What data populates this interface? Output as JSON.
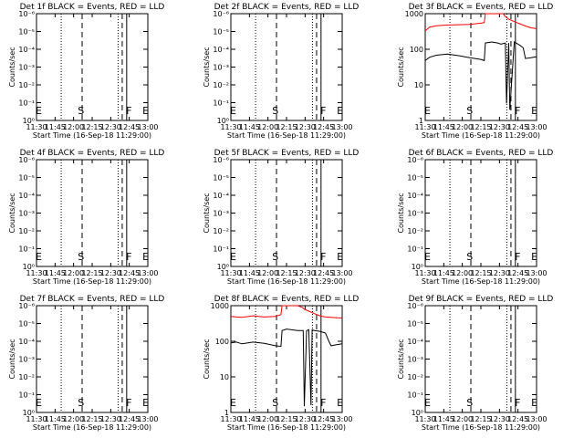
{
  "chart_data": [
    {
      "type": "line",
      "title": "Det 1f BLACK = Events, RED = LLD",
      "xlabel": "Start Time (16-Sep-18 11:29:00)",
      "ylabel": "Counts/sec",
      "x_ticks": [
        "11:30",
        "11:45",
        "12:00",
        "12:15",
        "12:30",
        "12:45",
        "13:00"
      ],
      "y_ticks": [
        "10⁰",
        "10⁻¹",
        "10⁻²",
        "10⁻³",
        "10⁻⁴",
        "10⁻⁵",
        "10⁻⁶"
      ],
      "y_scale": "log",
      "y_tick_values": [
        1,
        0.1,
        0.01,
        0.001,
        0.0001,
        1e-05,
        1e-06
      ],
      "ylim": [
        1,
        1e-06
      ],
      "markers": [
        "E",
        "S",
        "F",
        "E"
      ],
      "series": []
    },
    {
      "type": "line",
      "title": "Det 2f BLACK = Events, RED = LLD",
      "xlabel": "Start Time (16-Sep-18 11:29:00)",
      "ylabel": "Counts/sec",
      "x_ticks": [
        "11:30",
        "11:45",
        "12:00",
        "12:15",
        "12:30",
        "12:45",
        "13:00"
      ],
      "y_ticks": [
        "10⁰",
        "10⁻¹",
        "10⁻²",
        "10⁻³",
        "10⁻⁴",
        "10⁻⁵",
        "10⁻⁶"
      ],
      "y_scale": "log",
      "y_tick_values": [
        1,
        0.1,
        0.01,
        0.001,
        0.0001,
        1e-05,
        1e-06
      ],
      "ylim": [
        1,
        1e-06
      ],
      "markers": [
        "E",
        "S",
        "F",
        "E"
      ],
      "series": []
    },
    {
      "type": "line",
      "title": "Det 3f BLACK = Events, RED = LLD",
      "xlabel": "Start Time (16-Sep-18 11:29:00)",
      "ylabel": "Counts/sec",
      "x_ticks": [
        "11:30",
        "11:45",
        "12:00",
        "12:15",
        "12:30",
        "12:45",
        "13:00"
      ],
      "y_ticks": [
        "1",
        "10",
        "100",
        "1000"
      ],
      "y_scale": "log",
      "y_tick_values": [
        1,
        10,
        100,
        1000
      ],
      "ylim": [
        1,
        1000
      ],
      "markers": [
        "E",
        "S",
        "F",
        "E"
      ],
      "series": [
        {
          "color": "#ff0000",
          "x": [
            0.0,
            0.04,
            0.1,
            0.2,
            0.3,
            0.4,
            0.5,
            0.53,
            0.54,
            0.6,
            0.65,
            0.68,
            0.7,
            0.72,
            0.75,
            0.8,
            0.85,
            0.9,
            0.95,
            1.0
          ],
          "y": [
            330,
            420,
            460,
            480,
            490,
            500,
            540,
            560,
            1000,
            1000,
            1000,
            1000,
            1000,
            830,
            700,
            600,
            520,
            450,
            400,
            380
          ]
        },
        {
          "color": "#000000",
          "x": [
            0.0,
            0.04,
            0.1,
            0.2,
            0.3,
            0.4,
            0.5,
            0.53,
            0.54,
            0.6,
            0.65,
            0.68,
            0.72,
            0.73,
            0.75,
            0.76,
            0.8,
            0.85,
            0.88,
            0.9,
            0.95,
            1.0
          ],
          "y": [
            48,
            60,
            68,
            73,
            66,
            58,
            52,
            48,
            150,
            160,
            150,
            140,
            150,
            3,
            150,
            2,
            160,
            130,
            110,
            55,
            58,
            62
          ]
        }
      ]
    },
    {
      "type": "line",
      "title": "Det 4f BLACK = Events, RED = LLD",
      "xlabel": "Start Time (16-Sep-18 11:29:00)",
      "ylabel": "Counts/sec",
      "x_ticks": [
        "11:30",
        "11:45",
        "12:00",
        "12:15",
        "12:30",
        "12:45",
        "13:00"
      ],
      "y_ticks": [
        "10⁰",
        "10⁻¹",
        "10⁻²",
        "10⁻³",
        "10⁻⁴",
        "10⁻⁵",
        "10⁻⁶"
      ],
      "y_scale": "log",
      "y_tick_values": [
        1,
        0.1,
        0.01,
        0.001,
        0.0001,
        1e-05,
        1e-06
      ],
      "ylim": [
        1,
        1e-06
      ],
      "markers": [
        "E",
        "S",
        "F",
        "E"
      ],
      "series": []
    },
    {
      "type": "line",
      "title": "Det 5f BLACK = Events, RED = LLD",
      "xlabel": "Start Time (16-Sep-18 11:29:00)",
      "ylabel": "Counts/sec",
      "x_ticks": [
        "11:30",
        "11:45",
        "12:00",
        "12:15",
        "12:30",
        "12:45",
        "13:00"
      ],
      "y_ticks": [
        "10⁰",
        "10⁻¹",
        "10⁻²",
        "10⁻³",
        "10⁻⁴",
        "10⁻⁵",
        "10⁻⁶"
      ],
      "y_scale": "log",
      "y_tick_values": [
        1,
        0.1,
        0.01,
        0.001,
        0.0001,
        1e-05,
        1e-06
      ],
      "ylim": [
        1,
        1e-06
      ],
      "markers": [
        "E",
        "S",
        "F",
        "E"
      ],
      "series": []
    },
    {
      "type": "line",
      "title": "Det 6f BLACK = Events, RED = LLD",
      "xlabel": "Start Time (16-Sep-18 11:29:00)",
      "ylabel": "Counts/sec",
      "x_ticks": [
        "11:30",
        "11:45",
        "12:00",
        "12:15",
        "12:30",
        "12:45",
        "13:00"
      ],
      "y_ticks": [
        "10⁰",
        "10⁻¹",
        "10⁻²",
        "10⁻³",
        "10⁻⁴",
        "10⁻⁵",
        "10⁻⁶"
      ],
      "y_scale": "log",
      "y_tick_values": [
        1,
        0.1,
        0.01,
        0.001,
        0.0001,
        1e-05,
        1e-06
      ],
      "ylim": [
        1,
        1e-06
      ],
      "markers": [
        "E",
        "S",
        "F",
        "E"
      ],
      "series": []
    },
    {
      "type": "line",
      "title": "Det 7f BLACK = Events, RED = LLD",
      "xlabel": "Start Time (16-Sep-18 11:29:00)",
      "ylabel": "Counts/sec",
      "x_ticks": [
        "11:30",
        "11:45",
        "12:00",
        "12:15",
        "12:30",
        "12:45",
        "13:00"
      ],
      "y_ticks": [
        "10⁰",
        "10⁻¹",
        "10⁻²",
        "10⁻³",
        "10⁻⁴",
        "10⁻⁵",
        "10⁻⁶"
      ],
      "y_scale": "log",
      "y_tick_values": [
        1,
        0.1,
        0.01,
        0.001,
        0.0001,
        1e-05,
        1e-06
      ],
      "ylim": [
        1,
        1e-06
      ],
      "markers": [
        "E",
        "S",
        "F",
        "E"
      ],
      "series": []
    },
    {
      "type": "line",
      "title": "Det 8f BLACK = Events, RED = LLD",
      "xlabel": "Start Time (16-Sep-18 11:29:00)",
      "ylabel": "Counts/sec",
      "x_ticks": [
        "11:30",
        "11:45",
        "12:00",
        "12:15",
        "12:30",
        "12:45",
        "13:00"
      ],
      "y_ticks": [
        "1",
        "10",
        "100",
        "1000"
      ],
      "y_scale": "log",
      "y_tick_values": [
        1,
        10,
        100,
        1000
      ],
      "ylim": [
        1,
        1000
      ],
      "markers": [
        "E",
        "S",
        "F",
        "E"
      ],
      "series": [
        {
          "color": "#ff0000",
          "x": [
            0.0,
            0.05,
            0.1,
            0.2,
            0.3,
            0.4,
            0.45,
            0.46,
            0.5,
            0.6,
            0.64,
            0.66,
            0.7,
            0.75,
            0.8,
            0.85,
            0.9,
            0.95,
            1.0
          ],
          "y": [
            500,
            480,
            470,
            520,
            480,
            500,
            560,
            1000,
            1000,
            1000,
            900,
            800,
            700,
            600,
            520,
            480,
            470,
            460,
            450
          ]
        },
        {
          "color": "#000000",
          "x": [
            0.0,
            0.05,
            0.1,
            0.2,
            0.3,
            0.4,
            0.45,
            0.46,
            0.5,
            0.6,
            0.65,
            0.66,
            0.68,
            0.7,
            0.72,
            0.73,
            0.75,
            0.8,
            0.85,
            0.88,
            0.9,
            0.95,
            1.0
          ],
          "y": [
            90,
            95,
            85,
            95,
            88,
            75,
            72,
            200,
            220,
            200,
            200,
            1.5,
            200,
            210,
            1.6,
            210,
            200,
            190,
            170,
            100,
            75,
            80,
            85
          ]
        }
      ]
    },
    {
      "type": "line",
      "title": "Det 9f BLACK = Events, RED = LLD",
      "xlabel": "Start Time (16-Sep-18 11:29:00)",
      "ylabel": "Counts/sec",
      "x_ticks": [
        "11:30",
        "11:45",
        "12:00",
        "12:15",
        "12:30",
        "12:45",
        "13:00"
      ],
      "y_ticks": [
        "10⁰",
        "10⁻¹",
        "10⁻²",
        "10⁻³",
        "10⁻⁴",
        "10⁻⁵",
        "10⁻⁶"
      ],
      "y_scale": "log",
      "y_tick_values": [
        1,
        0.1,
        0.01,
        0.001,
        0.0001,
        1e-05,
        1e-06
      ],
      "ylim": [
        1,
        1e-06
      ],
      "markers": [
        "E",
        "S",
        "F",
        "E"
      ],
      "series": []
    }
  ]
}
